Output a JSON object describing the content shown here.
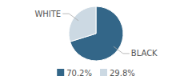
{
  "chart_data": {
    "type": "pie",
    "categories": [
      "BLACK",
      "WHITE"
    ],
    "values": [
      70.2,
      29.8
    ],
    "value_labels": [
      "70.2%",
      "29.8%"
    ],
    "colors": [
      "#336688",
      "#ccd9e3"
    ],
    "legend": "bottom"
  }
}
